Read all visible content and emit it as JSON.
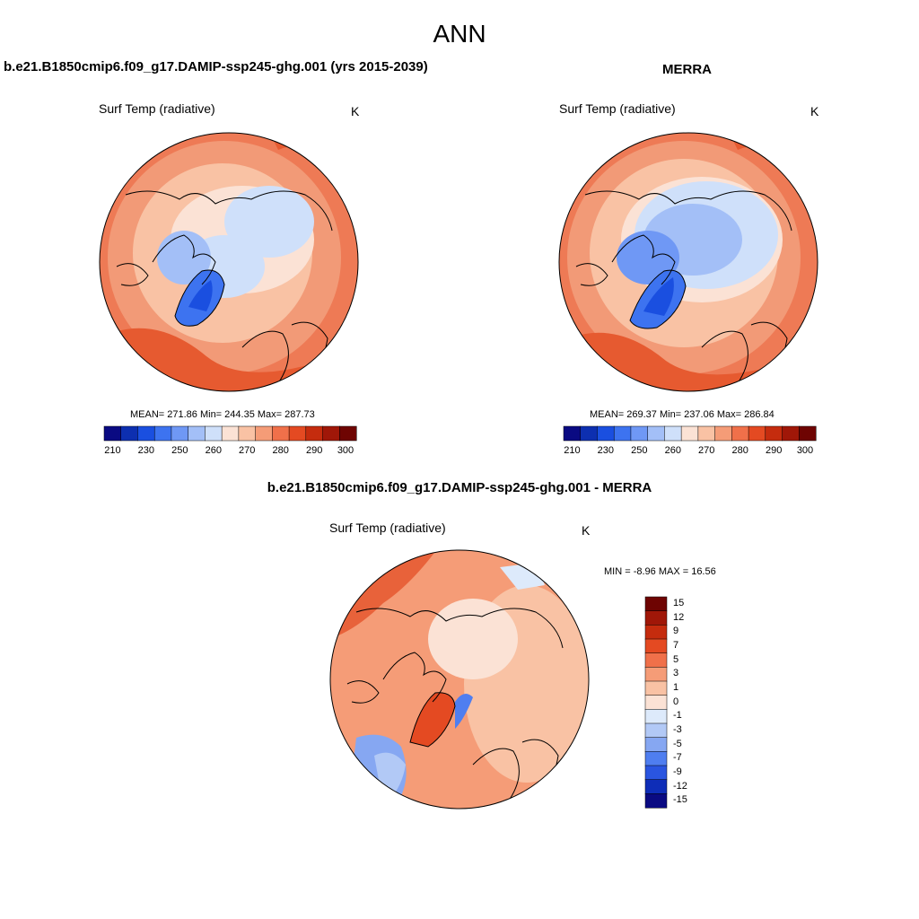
{
  "figure": {
    "title": "ANN"
  },
  "panels": [
    {
      "title": "b.e21.B1850cmip6.f09_g17.DAMIP-ssp245-ghg.001 (yrs 2015-2039)",
      "variable": "Surf Temp (radiative)",
      "units": "K",
      "stats": "MEAN= 271.86  Min= 244.35  Max= 287.73",
      "colorbar_ticks": [
        "210",
        "230",
        "250",
        "260",
        "270",
        "280",
        "290",
        "300"
      ]
    },
    {
      "title": "MERRA",
      "variable": "Surf Temp (radiative)",
      "units": "K",
      "stats": "MEAN= 269.37  Min= 237.06  Max= 286.84",
      "colorbar_ticks": [
        "210",
        "230",
        "250",
        "260",
        "270",
        "280",
        "290",
        "300"
      ]
    },
    {
      "title": "b.e21.B1850cmip6.f09_g17.DAMIP-ssp245-ghg.001 - MERRA",
      "variable": "Surf Temp (radiative)",
      "units": "K",
      "stats": "MIN =  -8.96 MAX =  16.56",
      "colorbar_ticks": [
        "15",
        "12",
        "9",
        "7",
        "5",
        "3",
        "1",
        "0",
        "-1",
        "-3",
        "-5",
        "-7",
        "-9",
        "-12",
        "-15"
      ]
    }
  ],
  "colors": {
    "abs_scale": [
      "#0a0a82",
      "#0d2fb0",
      "#1a4fe0",
      "#3d73f0",
      "#6f98f5",
      "#a3bff7",
      "#cfe0fa",
      "#fbe2d5",
      "#f9c2a4",
      "#f59c77",
      "#f0704a",
      "#e44a22",
      "#c52c0e",
      "#a01708",
      "#6e0402"
    ],
    "diff_scale": [
      "#6e0402",
      "#a01708",
      "#c52c0e",
      "#e44a22",
      "#f0704a",
      "#f59c77",
      "#f9c2a4",
      "#fbe2d5",
      "#ddeafb",
      "#b2c9f6",
      "#86a7f2",
      "#4f7ef0",
      "#2a55e0",
      "#0e2db8",
      "#0a0a82"
    ]
  }
}
